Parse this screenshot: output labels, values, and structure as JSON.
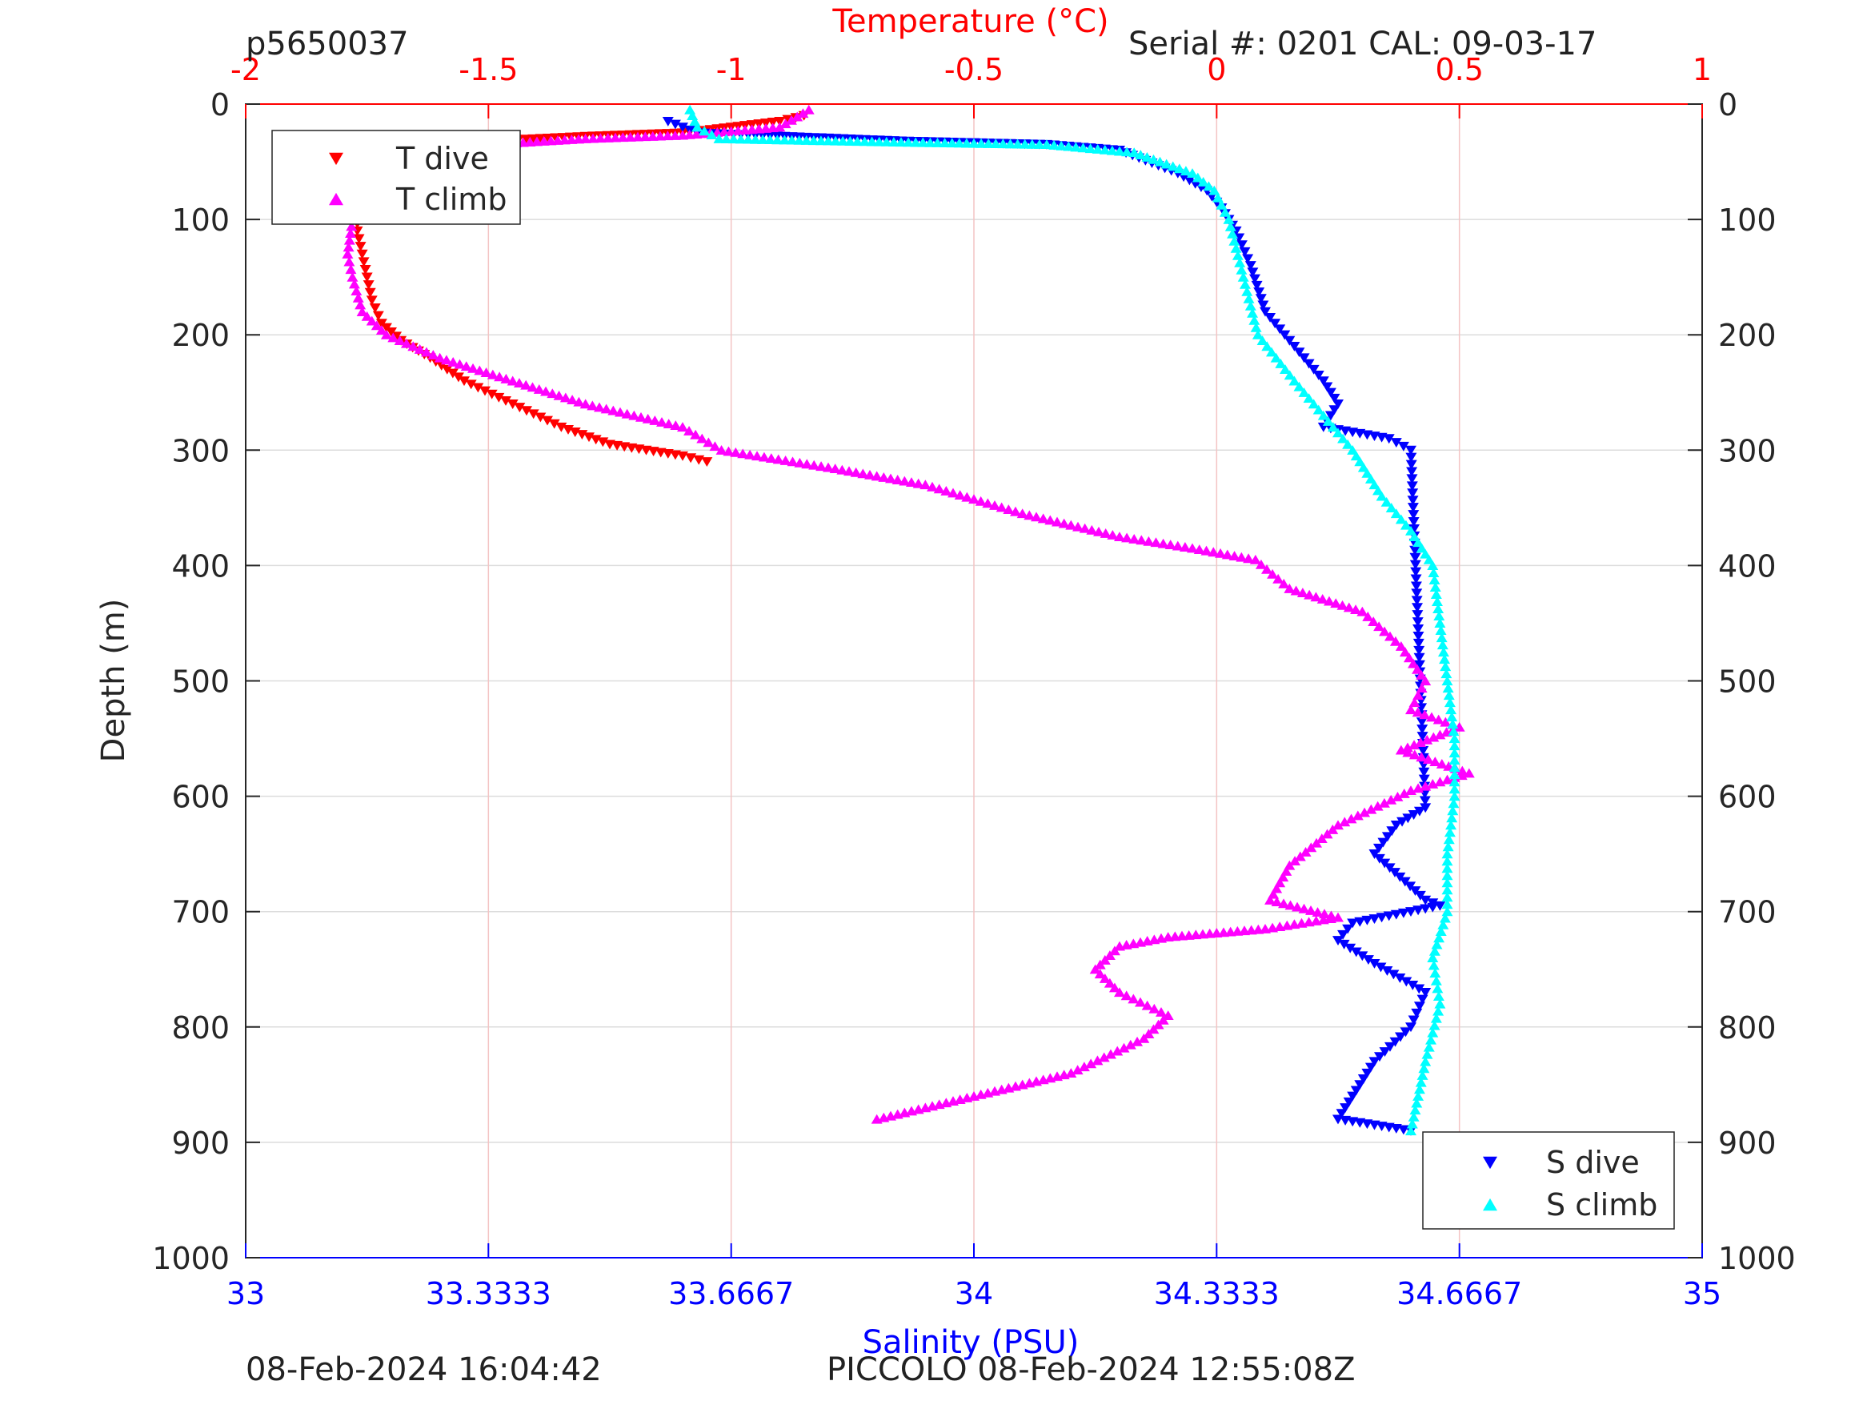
{
  "header": {
    "glider_id": "p5650037",
    "serial": "Serial #: 0201  CAL: 09-03-17"
  },
  "footer": {
    "left": "08-Feb-2024 16:04:42",
    "center": "PICCOLO 08-Feb-2024 12:55:08Z"
  },
  "chart_data": {
    "type": "scatter",
    "ylabel": "Depth (m)",
    "ylim": [
      1000,
      0
    ],
    "yticks": [
      0,
      100,
      200,
      300,
      400,
      500,
      600,
      700,
      800,
      900,
      1000
    ],
    "y_reversed": true,
    "x_top": {
      "label": "Temperature (°C)",
      "lim": [
        -2,
        1
      ],
      "ticks": [
        -2,
        -1.5,
        -1,
        -0.5,
        0,
        0.5,
        1
      ],
      "tick_labels": [
        "-2",
        "-1.5",
        "-1",
        "-0.5",
        "0",
        "0.5",
        "1"
      ],
      "color": "#ff0000"
    },
    "x_bottom": {
      "label": "Salinity (PSU)",
      "lim": [
        33,
        35
      ],
      "ticks": [
        33,
        33.3333,
        33.6667,
        34,
        34.3333,
        34.6667,
        35
      ],
      "tick_labels": [
        "33",
        "33.3333",
        "33.6667",
        "34",
        "34.3333",
        "34.6667",
        "35"
      ],
      "color": "#0000ff"
    },
    "grid": true,
    "legends": [
      {
        "placement": "top-left",
        "entries": [
          {
            "name": "T dive",
            "series": 0
          },
          {
            "name": "T climb",
            "series": 1
          }
        ]
      },
      {
        "placement": "bottom-right",
        "entries": [
          {
            "name": "S dive",
            "series": 2
          },
          {
            "name": "S climb",
            "series": 3
          }
        ]
      }
    ],
    "series": [
      {
        "name": "T dive",
        "axis": "top",
        "marker": "triangle-down",
        "color": "#ff0000",
        "points": [
          [
            -0.85,
            10
          ],
          [
            -0.9,
            15
          ],
          [
            -1.0,
            20
          ],
          [
            -1.1,
            25
          ],
          [
            -1.3,
            28
          ],
          [
            -1.5,
            32
          ],
          [
            -1.65,
            40
          ],
          [
            -1.73,
            55
          ],
          [
            -1.76,
            70
          ],
          [
            -1.77,
            90
          ],
          [
            -1.77,
            110
          ],
          [
            -1.76,
            130
          ],
          [
            -1.75,
            150
          ],
          [
            -1.74,
            170
          ],
          [
            -1.72,
            190
          ],
          [
            -1.68,
            205
          ],
          [
            -1.62,
            220
          ],
          [
            -1.55,
            240
          ],
          [
            -1.45,
            260
          ],
          [
            -1.35,
            280
          ],
          [
            -1.25,
            295
          ],
          [
            -1.1,
            305
          ],
          [
            -1.05,
            310
          ]
        ]
      },
      {
        "name": "T climb",
        "axis": "top",
        "marker": "triangle-up",
        "color": "#ff00ff",
        "points": [
          [
            -0.84,
            5
          ],
          [
            -0.9,
            20
          ],
          [
            -1.1,
            27
          ],
          [
            -1.3,
            30
          ],
          [
            -1.5,
            35
          ],
          [
            -1.65,
            45
          ],
          [
            -1.72,
            60
          ],
          [
            -1.76,
            80
          ],
          [
            -1.78,
            100
          ],
          [
            -1.79,
            130
          ],
          [
            -1.78,
            150
          ],
          [
            -1.76,
            180
          ],
          [
            -1.71,
            200
          ],
          [
            -1.6,
            220
          ],
          [
            -1.45,
            240
          ],
          [
            -1.3,
            260
          ],
          [
            -1.1,
            280
          ],
          [
            -1.02,
            300
          ],
          [
            -0.8,
            315
          ],
          [
            -0.6,
            330
          ],
          [
            -0.4,
            355
          ],
          [
            -0.2,
            375
          ],
          [
            -0.05,
            385
          ],
          [
            0.08,
            395
          ],
          [
            0.15,
            420
          ],
          [
            0.3,
            440
          ],
          [
            0.38,
            470
          ],
          [
            0.43,
            500
          ],
          [
            0.4,
            525
          ],
          [
            0.5,
            540
          ],
          [
            0.38,
            560
          ],
          [
            0.52,
            580
          ],
          [
            0.4,
            595
          ],
          [
            0.25,
            625
          ],
          [
            0.15,
            660
          ],
          [
            0.11,
            690
          ],
          [
            0.25,
            705
          ],
          [
            0.1,
            715
          ],
          [
            -0.1,
            722
          ],
          [
            -0.2,
            730
          ],
          [
            -0.25,
            750
          ],
          [
            -0.2,
            770
          ],
          [
            -0.1,
            790
          ],
          [
            -0.15,
            810
          ],
          [
            -0.3,
            840
          ],
          [
            -0.5,
            860
          ],
          [
            -0.6,
            870
          ],
          [
            -0.7,
            880
          ]
        ]
      },
      {
        "name": "S dive",
        "axis": "bottom",
        "marker": "triangle-down",
        "color": "#0000ff",
        "points": [
          [
            33.58,
            15
          ],
          [
            33.62,
            25
          ],
          [
            33.9,
            32
          ],
          [
            34.1,
            35
          ],
          [
            34.2,
            40
          ],
          [
            34.28,
            60
          ],
          [
            34.32,
            75
          ],
          [
            34.34,
            90
          ],
          [
            34.36,
            110
          ],
          [
            34.38,
            140
          ],
          [
            34.4,
            180
          ],
          [
            34.44,
            210
          ],
          [
            34.48,
            240
          ],
          [
            34.5,
            260
          ],
          [
            34.48,
            280
          ],
          [
            34.57,
            290
          ],
          [
            34.6,
            300
          ],
          [
            34.62,
            610
          ],
          [
            34.58,
            625
          ],
          [
            34.55,
            650
          ],
          [
            34.62,
            690
          ],
          [
            34.64,
            695
          ],
          [
            34.52,
            710
          ],
          [
            34.5,
            725
          ],
          [
            34.55,
            745
          ],
          [
            34.62,
            770
          ],
          [
            34.6,
            800
          ],
          [
            34.55,
            830
          ],
          [
            34.52,
            860
          ],
          [
            34.5,
            880
          ],
          [
            34.6,
            890
          ]
        ]
      },
      {
        "name": "S climb",
        "axis": "bottom",
        "marker": "triangle-up",
        "color": "#00ffff",
        "points": [
          [
            33.61,
            5
          ],
          [
            33.62,
            20
          ],
          [
            33.65,
            30
          ],
          [
            33.9,
            33
          ],
          [
            34.1,
            35
          ],
          [
            34.22,
            42
          ],
          [
            34.3,
            60
          ],
          [
            34.33,
            75
          ],
          [
            34.35,
            100
          ],
          [
            34.37,
            150
          ],
          [
            34.39,
            200
          ],
          [
            34.44,
            240
          ],
          [
            34.48,
            270
          ],
          [
            34.52,
            300
          ],
          [
            34.56,
            340
          ],
          [
            34.6,
            370
          ],
          [
            34.63,
            400
          ],
          [
            34.64,
            450
          ],
          [
            34.65,
            500
          ],
          [
            34.66,
            550
          ],
          [
            34.66,
            600
          ],
          [
            34.65,
            650
          ],
          [
            34.65,
            700
          ],
          [
            34.63,
            740
          ],
          [
            34.64,
            780
          ],
          [
            34.62,
            830
          ],
          [
            34.61,
            860
          ],
          [
            34.6,
            890
          ]
        ]
      }
    ]
  }
}
